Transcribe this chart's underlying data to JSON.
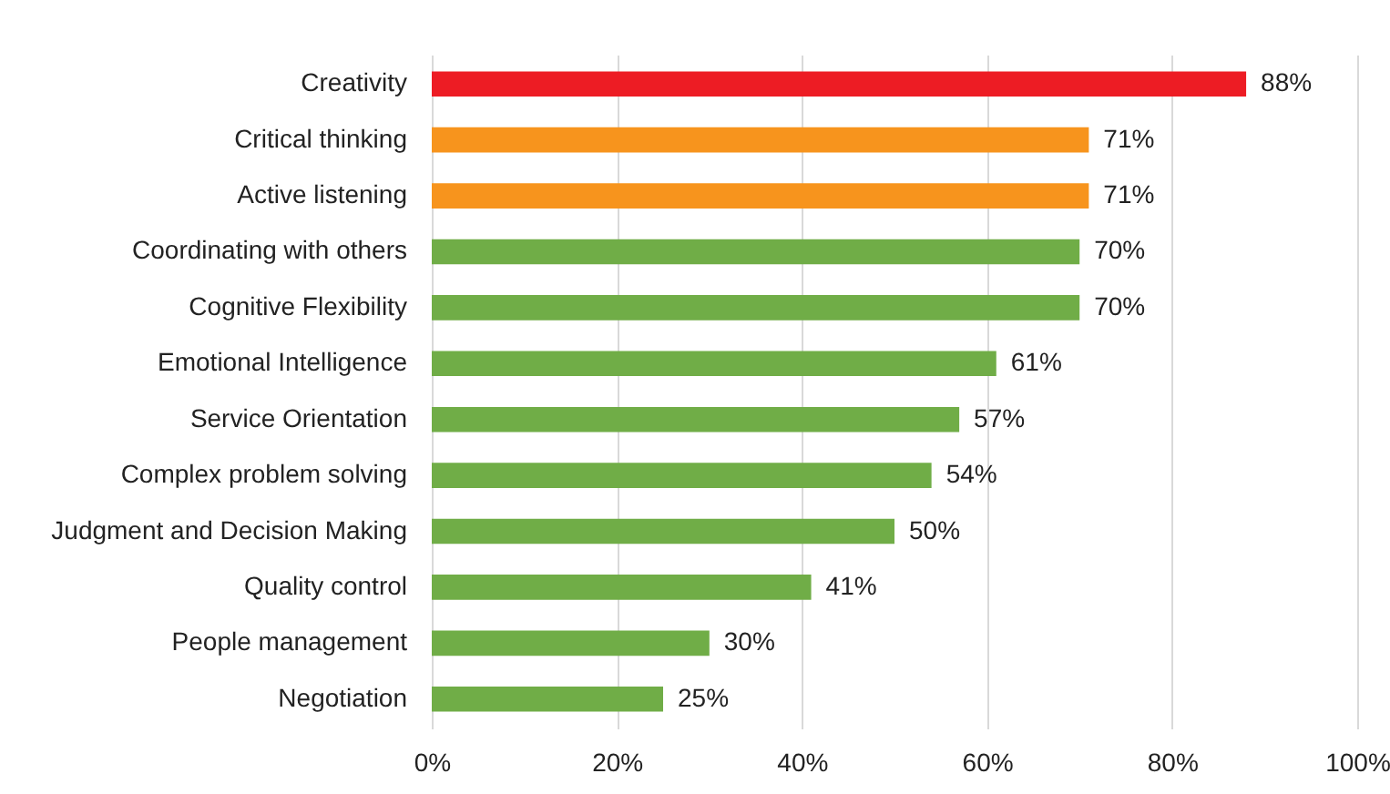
{
  "chart_data": {
    "type": "bar",
    "orientation": "horizontal",
    "categories": [
      "Creativity",
      "Critical thinking",
      "Active listening",
      "Coordinating with others",
      "Cognitive Flexibility",
      "Emotional Intelligence",
      "Service Orientation",
      "Complex problem solving",
      "Judgment and Decision Making",
      "Quality control",
      "People management",
      "Negotiation"
    ],
    "values": [
      88,
      71,
      71,
      70,
      70,
      61,
      57,
      54,
      50,
      41,
      30,
      25
    ],
    "colors": [
      "#ed1c24",
      "#f7941d",
      "#f7941d",
      "#70ad47",
      "#70ad47",
      "#70ad47",
      "#70ad47",
      "#70ad47",
      "#70ad47",
      "#70ad47",
      "#70ad47",
      "#70ad47"
    ],
    "value_labels": [
      "88%",
      "71%",
      "71%",
      "70%",
      "70%",
      "61%",
      "57%",
      "54%",
      "50%",
      "41%",
      "30%",
      "25%"
    ],
    "xlim": [
      0,
      100
    ],
    "xticks": [
      {
        "value": 0,
        "label": "0%"
      },
      {
        "value": 20,
        "label": "20%"
      },
      {
        "value": 40,
        "label": "40%"
      },
      {
        "value": 60,
        "label": "60%"
      },
      {
        "value": 80,
        "label": "80%"
      },
      {
        "value": 100,
        "label": "100%"
      }
    ],
    "grid": "x"
  }
}
